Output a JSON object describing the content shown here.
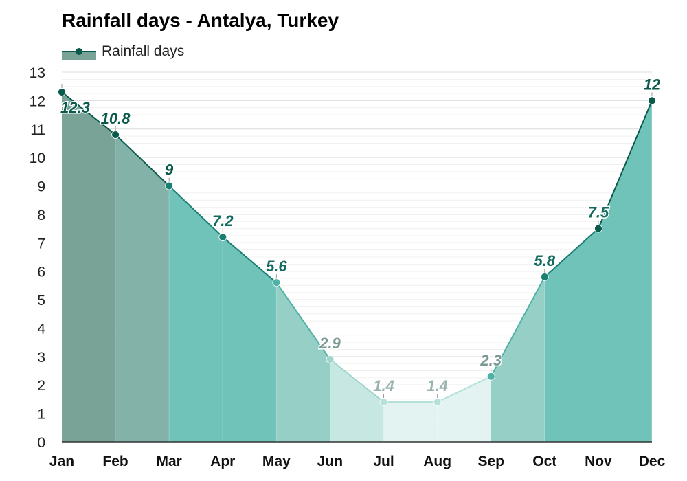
{
  "chart_data": {
    "type": "area",
    "title": "Rainfall days - Antalya, Turkey",
    "xlabel": "",
    "ylabel": "",
    "ylim": [
      0,
      13
    ],
    "yticks": [
      0,
      1,
      2,
      3,
      4,
      5,
      6,
      7,
      8,
      9,
      10,
      11,
      12,
      13
    ],
    "grid": true,
    "legend_position": "top-left",
    "categories": [
      "Jan",
      "Feb",
      "Mar",
      "Apr",
      "May",
      "Jun",
      "Jul",
      "Aug",
      "Sep",
      "Oct",
      "Nov",
      "Dec"
    ],
    "series": [
      {
        "name": "Rainfall days",
        "values": [
          12.3,
          10.8,
          9,
          7.2,
          5.6,
          2.9,
          1.4,
          1.4,
          2.3,
          5.8,
          7.5,
          12
        ],
        "labels": [
          "12.3",
          "10.8",
          "9",
          "7.2",
          "5.6",
          "2.9",
          "1.4",
          "1.4",
          "2.3",
          "5.8",
          "7.5",
          "12"
        ],
        "color": "#0a5a4c"
      }
    ],
    "month_band_colors": [
      "#7aa398",
      "#82b2a8",
      "#6fc3b8",
      "#6fc3b8",
      "#95cfc6",
      "#c7e7e3",
      "#e3f3f1",
      "#e3f3f1",
      "#95cfc6",
      "#6fc3b8",
      "#6fc3b8",
      "#7aa398"
    ],
    "month_line_colors": [
      "#0a5a4c",
      "#0a5a4c",
      "#1a7f72",
      "#1a7f72",
      "#4fb2a6",
      "#9ed6ce",
      "#b6e0da",
      "#b6e0da",
      "#4fb2a6",
      "#1a7f72",
      "#0a5a4c",
      "#0a5a4c"
    ],
    "label_colors": [
      "#0a5a4c",
      "#0a5a4c",
      "#0a5a4c",
      "#136b5f",
      "#136b5f",
      "#7a9995",
      "#9bb3b0",
      "#9bb3b0",
      "#7a9995",
      "#136b5f",
      "#136b5f",
      "#0a5a4c"
    ]
  }
}
